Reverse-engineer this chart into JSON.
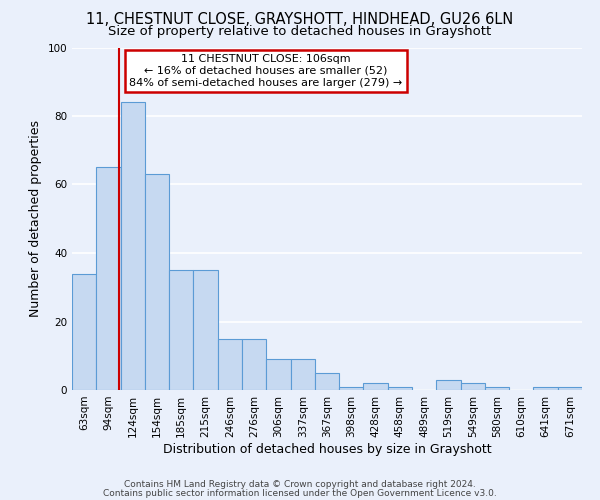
{
  "title1": "11, CHESTNUT CLOSE, GRAYSHOTT, HINDHEAD, GU26 6LN",
  "title2": "Size of property relative to detached houses in Grayshott",
  "xlabel": "Distribution of detached houses by size in Grayshott",
  "ylabel": "Number of detached properties",
  "categories": [
    "63sqm",
    "94sqm",
    "124sqm",
    "154sqm",
    "185sqm",
    "215sqm",
    "246sqm",
    "276sqm",
    "306sqm",
    "337sqm",
    "367sqm",
    "398sqm",
    "428sqm",
    "458sqm",
    "489sqm",
    "519sqm",
    "549sqm",
    "580sqm",
    "610sqm",
    "641sqm",
    "671sqm"
  ],
  "values": [
    34,
    65,
    84,
    63,
    35,
    35,
    15,
    15,
    9,
    9,
    5,
    1,
    2,
    1,
    0,
    3,
    2,
    1,
    0,
    1,
    1
  ],
  "bar_color": "#c6d9f1",
  "bar_edge_color": "#5b9bd5",
  "red_line_x": 1.43,
  "annotation_text": "11 CHESTNUT CLOSE: 106sqm\n← 16% of detached houses are smaller (52)\n84% of semi-detached houses are larger (279) →",
  "annotation_box_color": "#ffffff",
  "annotation_box_edge_color": "#cc0000",
  "ylim": [
    0,
    100
  ],
  "yticks": [
    0,
    20,
    40,
    60,
    80,
    100
  ],
  "background_color": "#eaf0fb",
  "grid_color": "#ffffff",
  "footer_line1": "Contains HM Land Registry data © Crown copyright and database right 2024.",
  "footer_line2": "Contains public sector information licensed under the Open Government Licence v3.0.",
  "title1_fontsize": 10.5,
  "title2_fontsize": 9.5,
  "axis_label_fontsize": 9,
  "tick_fontsize": 7.5,
  "annotation_fontsize": 8,
  "footer_fontsize": 6.5
}
